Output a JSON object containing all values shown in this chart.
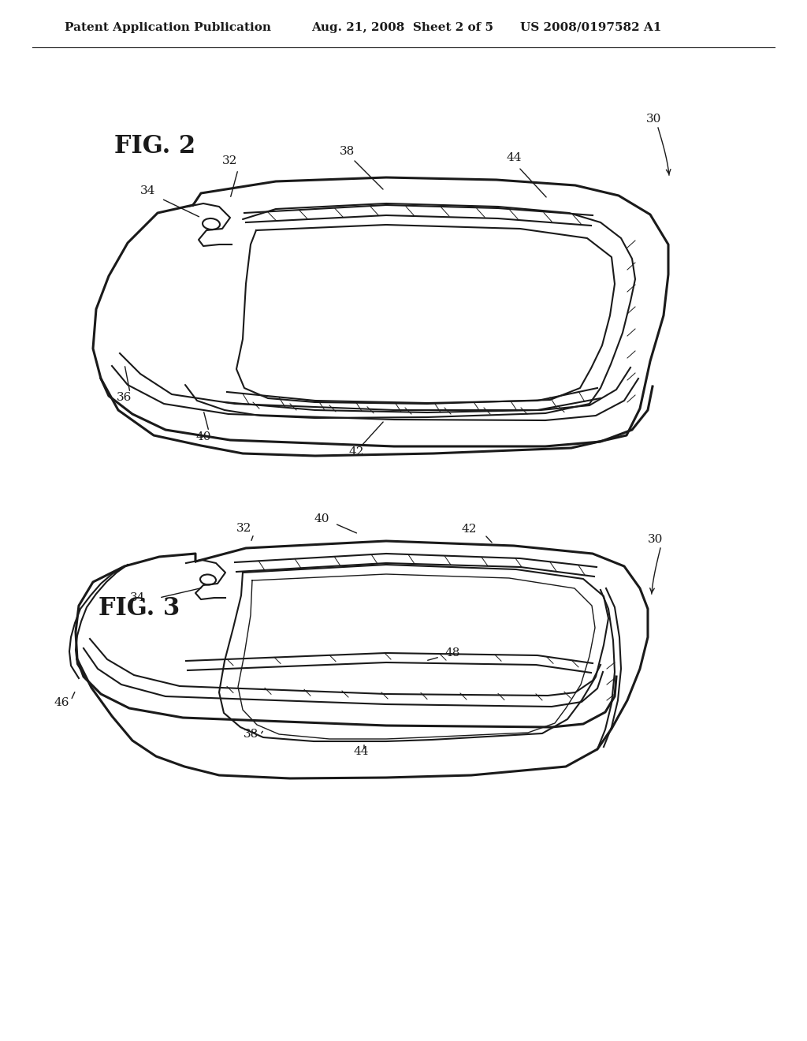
{
  "bg_color": "#ffffff",
  "header_text": "Patent Application Publication",
  "header_date": "Aug. 21, 2008  Sheet 2 of 5",
  "header_patent": "US 2008/0197582 A1",
  "line_color": "#1a1a1a",
  "line_width": 1.5,
  "thin_line": 0.8,
  "thick_line": 2.2
}
